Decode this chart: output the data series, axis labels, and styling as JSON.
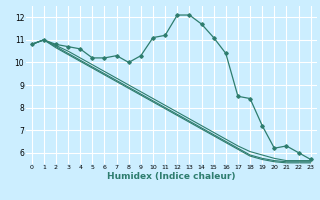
{
  "xlabel": "Humidex (Indice chaleur)",
  "bg_color": "#cceeff",
  "grid_color": "#ffffff",
  "line_color": "#2e7d6e",
  "xlim": [
    -0.5,
    23.5
  ],
  "ylim": [
    5.5,
    12.5
  ],
  "yticks": [
    6,
    7,
    8,
    9,
    10,
    11,
    12
  ],
  "xticks": [
    0,
    1,
    2,
    3,
    4,
    5,
    6,
    7,
    8,
    9,
    10,
    11,
    12,
    13,
    14,
    15,
    16,
    17,
    18,
    19,
    20,
    21,
    22,
    23
  ],
  "series": [
    [
      10.8,
      11.0,
      10.8,
      10.7,
      10.6,
      10.2,
      10.2,
      10.3,
      10.0,
      10.3,
      11.1,
      11.2,
      12.1,
      12.1,
      11.7,
      11.1,
      10.4,
      8.5,
      8.4,
      7.2,
      6.2,
      6.3,
      6.0,
      5.7
    ],
    [
      10.8,
      11.0,
      10.65,
      10.35,
      10.05,
      9.75,
      9.45,
      9.15,
      8.85,
      8.55,
      8.25,
      7.95,
      7.65,
      7.35,
      7.05,
      6.75,
      6.45,
      6.15,
      5.85,
      5.7,
      5.6,
      5.55,
      5.55,
      5.55
    ],
    [
      10.8,
      11.0,
      10.7,
      10.4,
      10.1,
      9.8,
      9.5,
      9.2,
      8.9,
      8.6,
      8.3,
      8.0,
      7.7,
      7.4,
      7.1,
      6.8,
      6.5,
      6.2,
      5.9,
      5.75,
      5.65,
      5.6,
      5.6,
      5.6
    ],
    [
      10.8,
      11.0,
      10.75,
      10.5,
      10.2,
      9.9,
      9.6,
      9.3,
      9.0,
      8.7,
      8.4,
      8.1,
      7.8,
      7.5,
      7.2,
      6.9,
      6.6,
      6.3,
      6.05,
      5.9,
      5.75,
      5.65,
      5.65,
      5.65
    ]
  ]
}
